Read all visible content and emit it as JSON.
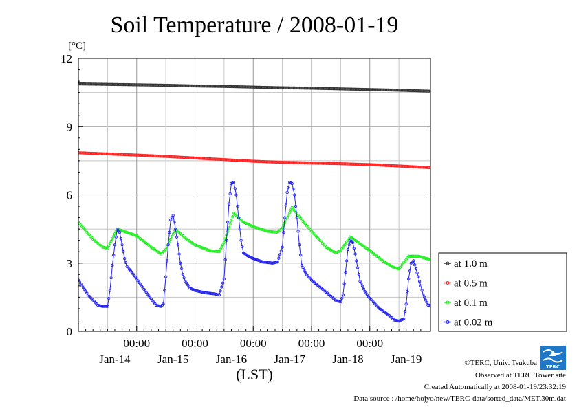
{
  "title": "Soil Temperature / 2008-01-19",
  "unit": "[°C]",
  "credits": [
    "©TERC, Univ. Tsukuba",
    "Observed at TERC Tower site",
    "Created Automatically at 2008-01-19/23:32:19",
    "Data source : /home/hojyo/new/TERC-data/sorted_data/MET.30m.dat"
  ],
  "logo_text": "TERC",
  "colors": {
    "at_1_0": "#333333",
    "at_0_5": "#ff2222",
    "at_0_1": "#22ee22",
    "at_0_02": "#2222ee"
  },
  "chart_data": {
    "type": "line",
    "title": "Soil Temperature / 2008-01-19",
    "xlabel": "(LST)",
    "ylabel": "[°C]",
    "x_unit": "hours since 2008-01-13 09:00 LST",
    "xlim": [
      0,
      145
    ],
    "ylim": [
      0,
      12
    ],
    "yticks": [
      "0",
      "3",
      "6",
      "9",
      "12"
    ],
    "ytick_values": [
      0,
      3,
      6,
      9,
      12
    ],
    "xticks_time": [
      "00:00",
      "00:00",
      "00:00",
      "00:00",
      "00:00"
    ],
    "xtick_time_values": [
      24,
      48,
      72,
      96,
      120
    ],
    "xticks_date": [
      "Jan-14",
      "Jan-15",
      "Jan-16",
      "Jan-17",
      "Jan-18",
      "Jan-19"
    ],
    "xtick_date_values": [
      15,
      39,
      63,
      87,
      111,
      135
    ],
    "grid": true,
    "legend_position": "right, outside plot",
    "series": [
      {
        "name": "at 1.0 m",
        "color": "#333333",
        "x": [
          0,
          12,
          24,
          36,
          48,
          60,
          72,
          84,
          96,
          108,
          120,
          132,
          144
        ],
        "y": [
          10.88,
          10.86,
          10.84,
          10.82,
          10.79,
          10.77,
          10.74,
          10.71,
          10.69,
          10.66,
          10.63,
          10.6,
          10.56
        ]
      },
      {
        "name": "at 0.5 m",
        "color": "#ff2222",
        "x": [
          0,
          12,
          24,
          36,
          48,
          60,
          72,
          84,
          96,
          108,
          120,
          132,
          144
        ],
        "y": [
          7.85,
          7.8,
          7.75,
          7.69,
          7.62,
          7.55,
          7.48,
          7.43,
          7.4,
          7.37,
          7.33,
          7.27,
          7.2
        ]
      },
      {
        "name": "at 0.1 m",
        "color": "#22ee22",
        "x": [
          0,
          6,
          10,
          12,
          16,
          20,
          24,
          30,
          34,
          36,
          40,
          44,
          48,
          54,
          58,
          60,
          64,
          68,
          72,
          78,
          82,
          84,
          88,
          92,
          96,
          102,
          106,
          108,
          112,
          116,
          120,
          126,
          130,
          132,
          136,
          140,
          145
        ],
        "y": [
          4.8,
          4.05,
          3.7,
          3.65,
          4.5,
          4.35,
          4.2,
          3.7,
          3.4,
          3.6,
          4.5,
          4.1,
          3.8,
          3.55,
          3.5,
          3.9,
          5.2,
          4.8,
          4.6,
          4.4,
          4.35,
          4.55,
          5.45,
          4.9,
          4.4,
          3.7,
          3.45,
          3.55,
          4.15,
          3.85,
          3.55,
          3.05,
          2.8,
          2.75,
          3.3,
          3.3,
          3.15
        ]
      },
      {
        "name": "at 0.02 m",
        "color": "#2222ee",
        "x": [
          0,
          4,
          8,
          10,
          12,
          13,
          14,
          15,
          16,
          17,
          18,
          19,
          20,
          22,
          24,
          28,
          32,
          34,
          35,
          36,
          37,
          38,
          39,
          40,
          41,
          42,
          43,
          44,
          46,
          48,
          52,
          56,
          58,
          60,
          61,
          62,
          63,
          64,
          65,
          66,
          67,
          68,
          70,
          72,
          76,
          80,
          82,
          84,
          85,
          86,
          87,
          88,
          89,
          90,
          91,
          92,
          94,
          96,
          100,
          104,
          106,
          108,
          109,
          110,
          111,
          112,
          113,
          114,
          115,
          116,
          118,
          120,
          124,
          128,
          130,
          132,
          133,
          134,
          135,
          136,
          137,
          138,
          140,
          142,
          144
        ],
        "y": [
          2.25,
          1.6,
          1.15,
          1.1,
          1.1,
          1.8,
          2.9,
          3.8,
          4.5,
          4.35,
          3.8,
          3.2,
          2.85,
          2.6,
          2.3,
          1.7,
          1.15,
          1.1,
          1.2,
          2.4,
          3.8,
          4.9,
          5.1,
          4.5,
          3.8,
          3.0,
          2.5,
          2.2,
          1.9,
          1.8,
          1.7,
          1.65,
          1.6,
          2.3,
          4.0,
          5.6,
          6.5,
          6.55,
          6.0,
          5.0,
          4.0,
          3.45,
          3.3,
          3.2,
          3.05,
          3.0,
          3.05,
          3.7,
          5.0,
          6.1,
          6.55,
          6.5,
          6.0,
          5.0,
          3.8,
          2.9,
          2.5,
          2.25,
          1.9,
          1.55,
          1.35,
          1.3,
          1.6,
          2.6,
          3.6,
          4.0,
          3.9,
          3.4,
          2.8,
          2.2,
          1.75,
          1.45,
          1.0,
          0.7,
          0.5,
          0.45,
          0.5,
          0.55,
          1.2,
          2.3,
          3.0,
          3.1,
          2.4,
          1.6,
          1.15
        ]
      }
    ]
  }
}
